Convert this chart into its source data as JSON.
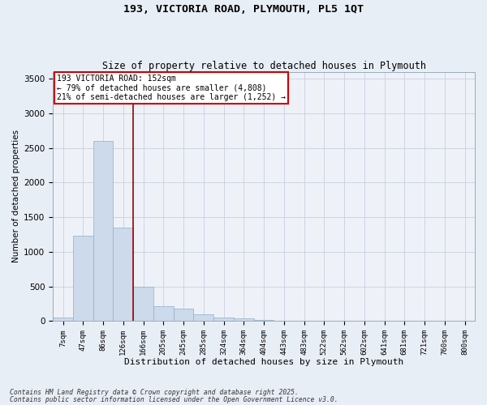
{
  "title1": "193, VICTORIA ROAD, PLYMOUTH, PL5 1QT",
  "title2": "Size of property relative to detached houses in Plymouth",
  "xlabel": "Distribution of detached houses by size in Plymouth",
  "ylabel": "Number of detached properties",
  "categories": [
    "7sqm",
    "47sqm",
    "86sqm",
    "126sqm",
    "166sqm",
    "205sqm",
    "245sqm",
    "285sqm",
    "324sqm",
    "364sqm",
    "404sqm",
    "443sqm",
    "483sqm",
    "522sqm",
    "562sqm",
    "602sqm",
    "641sqm",
    "681sqm",
    "721sqm",
    "760sqm",
    "800sqm"
  ],
  "values": [
    50,
    1230,
    2600,
    1350,
    490,
    220,
    180,
    95,
    55,
    38,
    20,
    8,
    4,
    2,
    2,
    1,
    1,
    0,
    0,
    0,
    0
  ],
  "bar_color": "#ccdaeb",
  "bar_edge_color": "#90aec8",
  "property_line_x": 3.5,
  "annotation_line1": "193 VICTORIA ROAD: 152sqm",
  "annotation_line2": "← 79% of detached houses are smaller (4,808)",
  "annotation_line3": "21% of semi-detached houses are larger (1,252) →",
  "vline_color": "#990000",
  "annotation_edge_color": "#cc0000",
  "ylim_max": 3600,
  "yticks": [
    0,
    500,
    1000,
    1500,
    2000,
    2500,
    3000,
    3500
  ],
  "footnote1": "Contains HM Land Registry data © Crown copyright and database right 2025.",
  "footnote2": "Contains public sector information licensed under the Open Government Licence v3.0.",
  "bg_color": "#e8eef5",
  "plot_bg_color": "#eef2f8",
  "grid_color": "#c5d0de"
}
